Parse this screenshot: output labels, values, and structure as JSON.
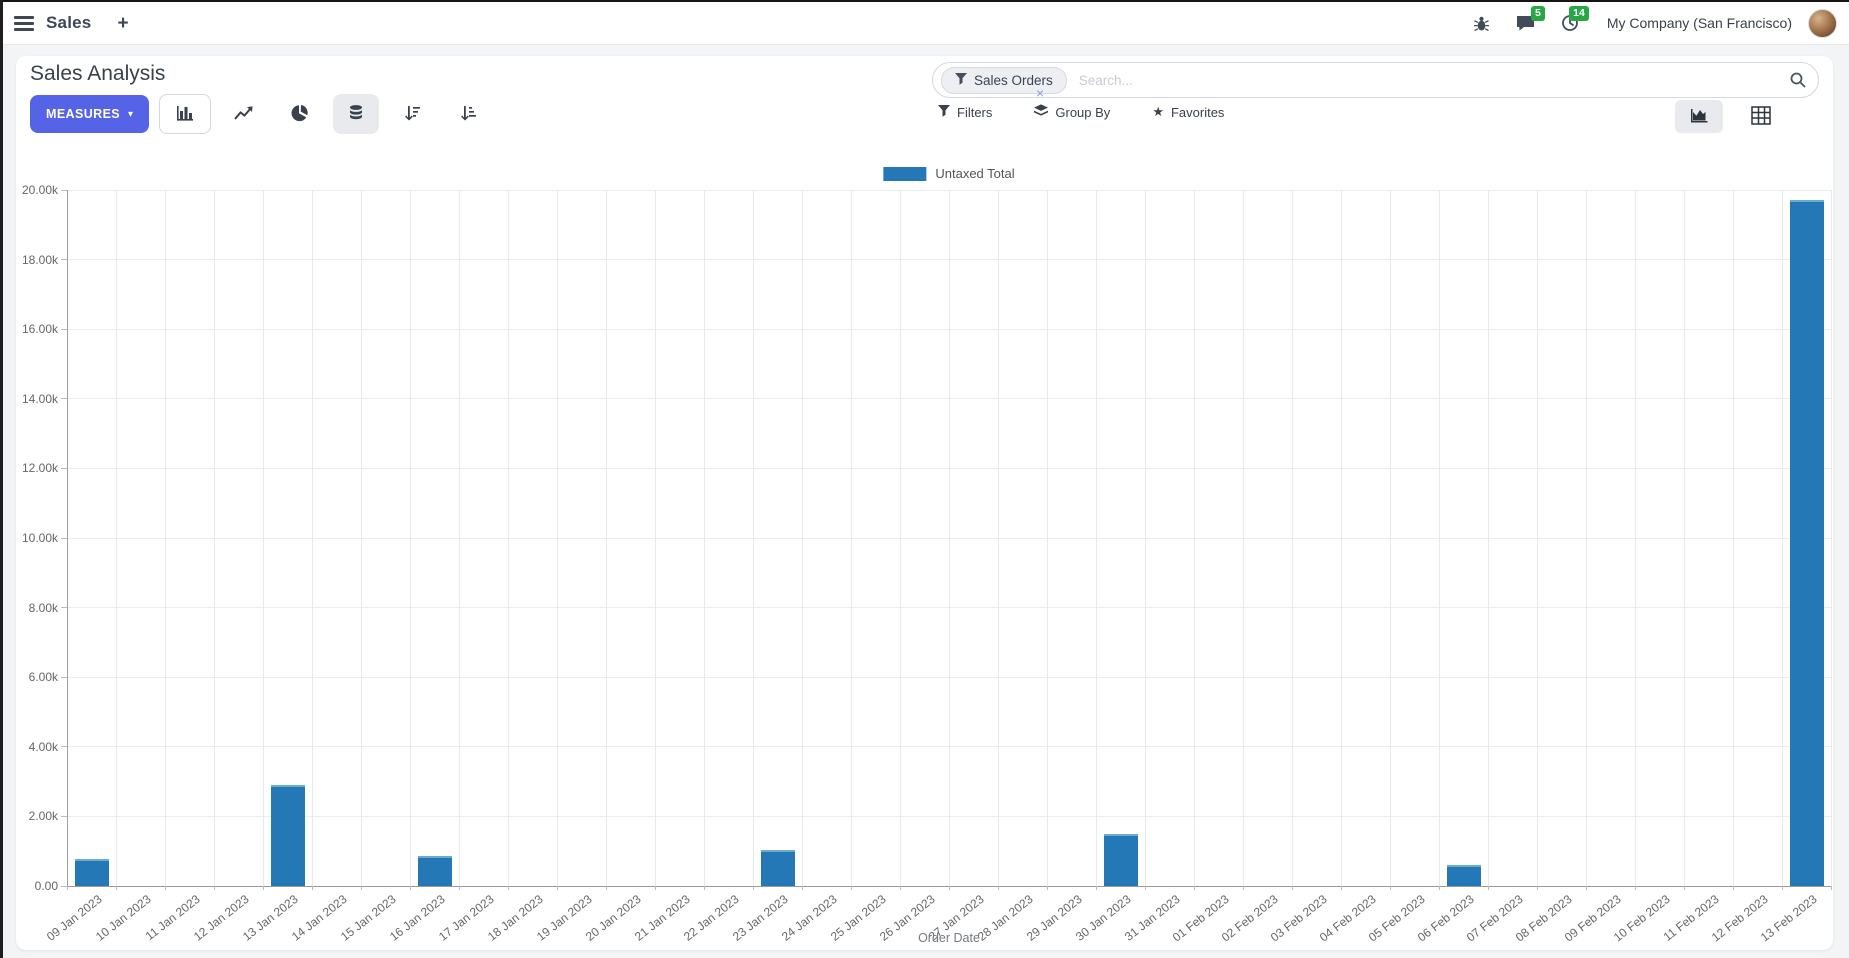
{
  "navbar": {
    "app_name": "Sales",
    "new_tab": "+",
    "messages_badge": "5",
    "activities_badge": "14",
    "company": "My Company (San Francisco)"
  },
  "control_panel": {
    "title": "Sales Analysis",
    "measures_label": "MEASURES",
    "caret": "▾",
    "facet_label": "Sales Orders",
    "facet_remove": "×",
    "search_placeholder": "Search...",
    "filters_label": "Filters",
    "group_by_label": "Group By",
    "favorites_label": "Favorites",
    "favorites_star": "★"
  },
  "chart_data": {
    "type": "bar",
    "title": "",
    "xlabel": "Order Date",
    "ylabel": "",
    "ylim": [
      0,
      20000
    ],
    "grid": true,
    "legend_position": "top",
    "y_ticks": [
      "0.00",
      "2.00k",
      "4.00k",
      "6.00k",
      "8.00k",
      "10.00k",
      "12.00k",
      "14.00k",
      "16.00k",
      "18.00k",
      "20.00k"
    ],
    "categories": [
      "09 Jan 2023",
      "10 Jan 2023",
      "11 Jan 2023",
      "12 Jan 2023",
      "13 Jan 2023",
      "14 Jan 2023",
      "15 Jan 2023",
      "16 Jan 2023",
      "17 Jan 2023",
      "18 Jan 2023",
      "19 Jan 2023",
      "20 Jan 2023",
      "21 Jan 2023",
      "22 Jan 2023",
      "23 Jan 2023",
      "24 Jan 2023",
      "25 Jan 2023",
      "26 Jan 2023",
      "27 Jan 2023",
      "28 Jan 2023",
      "29 Jan 2023",
      "30 Jan 2023",
      "31 Jan 2023",
      "01 Feb 2023",
      "02 Feb 2023",
      "03 Feb 2023",
      "04 Feb 2023",
      "05 Feb 2023",
      "06 Feb 2023",
      "07 Feb 2023",
      "08 Feb 2023",
      "09 Feb 2023",
      "10 Feb 2023",
      "11 Feb 2023",
      "12 Feb 2023",
      "13 Feb 2023"
    ],
    "series": [
      {
        "name": "Untaxed Total",
        "color": "#2478b5",
        "values": [
          780,
          0,
          0,
          0,
          2900,
          0,
          0,
          870,
          0,
          0,
          0,
          0,
          0,
          0,
          1040,
          0,
          0,
          0,
          0,
          0,
          0,
          1500,
          0,
          0,
          0,
          0,
          0,
          0,
          600,
          0,
          0,
          0,
          0,
          0,
          0,
          19700
        ]
      }
    ]
  }
}
